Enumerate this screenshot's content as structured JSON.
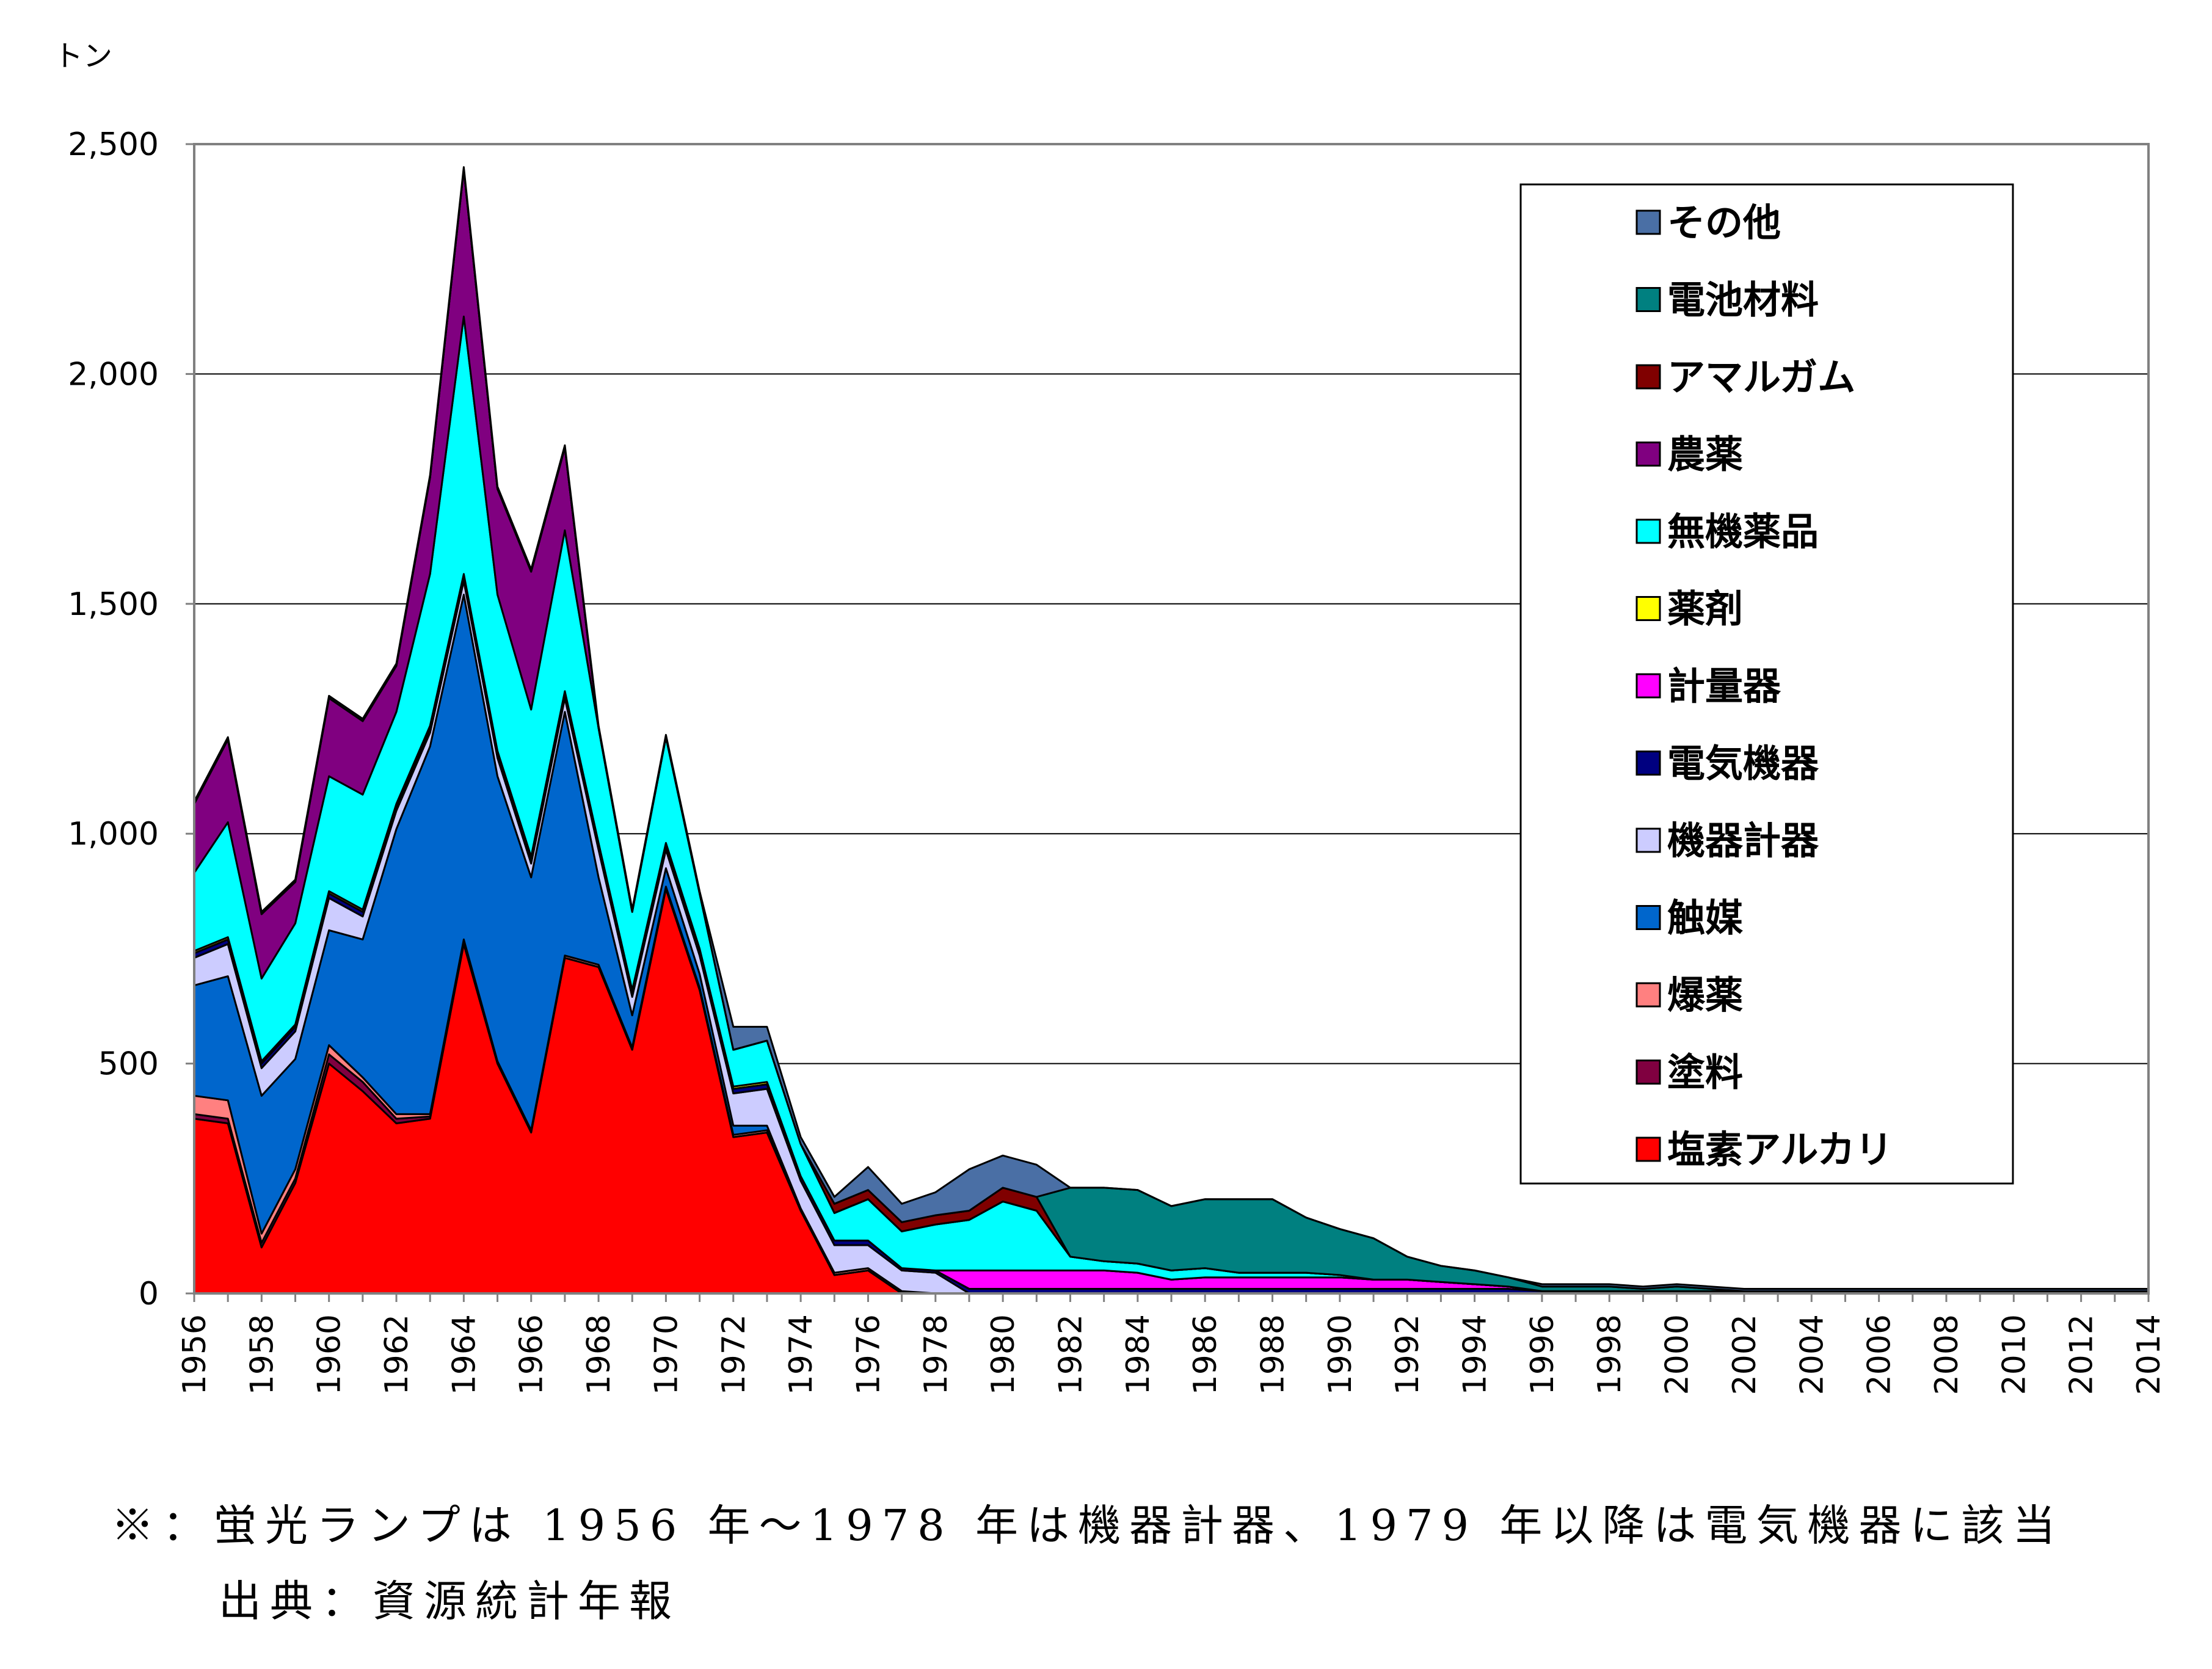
{
  "chart_data": {
    "type": "area",
    "stacked": true,
    "unit": "トン",
    "ylim": [
      0,
      2500
    ],
    "y_ticks": [
      "0",
      "500",
      "1,000",
      "1,500",
      "2,000",
      "2,500"
    ],
    "grid": true,
    "legend_position": "top-right",
    "x": [
      1956,
      1957,
      1958,
      1959,
      1960,
      1961,
      1962,
      1963,
      1964,
      1965,
      1966,
      1967,
      1968,
      1969,
      1970,
      1971,
      1972,
      1973,
      1974,
      1975,
      1976,
      1977,
      1978,
      1979,
      1980,
      1981,
      1982,
      1983,
      1984,
      1985,
      1986,
      1987,
      1988,
      1989,
      1990,
      1991,
      1992,
      1993,
      1994,
      1995,
      1996,
      1997,
      1998,
      1999,
      2000,
      2001,
      2002,
      2003,
      2004,
      2005,
      2006,
      2007,
      2008,
      2009,
      2010,
      2011,
      2012,
      2013,
      2014
    ],
    "x_tick_labels": [
      "1956",
      "1958",
      "1960",
      "1962",
      "1964",
      "1966",
      "1968",
      "1970",
      "1972",
      "1974",
      "1976",
      "1978",
      "1980",
      "1982",
      "1984",
      "1986",
      "1988",
      "1990",
      "1992",
      "1994",
      "1996",
      "1998",
      "2000",
      "2002",
      "2004",
      "2006",
      "2008",
      "2010",
      "2012",
      "2014"
    ],
    "series": [
      {
        "name": "塩素アルカリ",
        "color": "#ff0000",
        "values": [
          380,
          370,
          100,
          240,
          500,
          440,
          370,
          380,
          760,
          500,
          350,
          730,
          710,
          530,
          880,
          660,
          340,
          350,
          180,
          40,
          50,
          0,
          0,
          0,
          0,
          0,
          0,
          0,
          0,
          0,
          0,
          0,
          0,
          0,
          0,
          0,
          0,
          0,
          0,
          0,
          0,
          0,
          0,
          0,
          0,
          0,
          0,
          0,
          0,
          0,
          0,
          0,
          0,
          0,
          0,
          0,
          0,
          0,
          0
        ]
      },
      {
        "name": "塗料",
        "color": "#800040",
        "values": [
          10,
          10,
          10,
          10,
          20,
          20,
          10,
          5,
          5,
          0,
          0,
          0,
          0,
          0,
          0,
          0,
          0,
          0,
          0,
          0,
          0,
          0,
          0,
          0,
          0,
          0,
          0,
          0,
          0,
          0,
          0,
          0,
          0,
          0,
          0,
          0,
          0,
          0,
          0,
          0,
          0,
          0,
          0,
          0,
          0,
          0,
          0,
          0,
          0,
          0,
          0,
          0,
          0,
          0,
          0,
          0,
          0,
          0,
          0
        ]
      },
      {
        "name": "爆薬",
        "color": "#ff8080",
        "values": [
          40,
          40,
          20,
          20,
          20,
          10,
          10,
          5,
          5,
          5,
          5,
          5,
          5,
          5,
          5,
          5,
          5,
          5,
          5,
          5,
          5,
          5,
          0,
          0,
          0,
          0,
          0,
          0,
          0,
          0,
          0,
          0,
          0,
          0,
          0,
          0,
          0,
          0,
          0,
          0,
          0,
          0,
          0,
          0,
          0,
          0,
          0,
          0,
          0,
          0,
          0,
          0,
          0,
          0,
          0,
          0,
          0,
          0,
          0
        ]
      },
      {
        "name": "触媒",
        "color": "#0066cc",
        "values": [
          240,
          270,
          300,
          240,
          250,
          300,
          620,
          800,
          750,
          620,
          550,
          530,
          190,
          70,
          40,
          30,
          20,
          10,
          0,
          0,
          0,
          0,
          0,
          0,
          0,
          0,
          0,
          0,
          0,
          0,
          0,
          0,
          0,
          0,
          0,
          0,
          0,
          0,
          0,
          0,
          0,
          0,
          0,
          0,
          0,
          0,
          0,
          0,
          0,
          0,
          0,
          0,
          0,
          0,
          0,
          0,
          0,
          0,
          0
        ]
      },
      {
        "name": "機器計器",
        "color": "#ccccff",
        "values": [
          60,
          70,
          60,
          60,
          70,
          50,
          40,
          30,
          30,
          40,
          30,
          30,
          60,
          40,
          40,
          40,
          70,
          80,
          60,
          60,
          50,
          45,
          45,
          0,
          0,
          0,
          0,
          0,
          0,
          0,
          0,
          0,
          0,
          0,
          0,
          0,
          0,
          0,
          0,
          0,
          0,
          0,
          0,
          0,
          0,
          0,
          0,
          0,
          0,
          0,
          0,
          0,
          0,
          0,
          0,
          0,
          0,
          0,
          0
        ]
      },
      {
        "name": "電気機器",
        "color": "#000080",
        "values": [
          10,
          10,
          10,
          10,
          10,
          10,
          10,
          10,
          10,
          10,
          10,
          10,
          10,
          10,
          10,
          10,
          10,
          10,
          10,
          10,
          10,
          5,
          5,
          10,
          10,
          10,
          10,
          10,
          10,
          10,
          10,
          10,
          10,
          10,
          10,
          10,
          10,
          10,
          10,
          10,
          5,
          5,
          5,
          5,
          5,
          5,
          5,
          5,
          5,
          5,
          5,
          5,
          5,
          5,
          5,
          5,
          5,
          5,
          5
        ]
      },
      {
        "name": "計量器",
        "color": "#ff00ff",
        "values": [
          0,
          0,
          0,
          0,
          0,
          0,
          0,
          0,
          0,
          0,
          0,
          0,
          0,
          0,
          0,
          0,
          0,
          0,
          0,
          0,
          0,
          0,
          0,
          40,
          40,
          40,
          40,
          40,
          35,
          20,
          25,
          25,
          25,
          25,
          25,
          20,
          20,
          15,
          10,
          5,
          0,
          0,
          0,
          0,
          0,
          0,
          0,
          0,
          0,
          0,
          0,
          0,
          0,
          0,
          0,
          0,
          0,
          0,
          0
        ]
      },
      {
        "name": "薬剤",
        "color": "#ffff00",
        "values": [
          5,
          5,
          5,
          5,
          5,
          5,
          5,
          5,
          5,
          5,
          5,
          5,
          5,
          5,
          5,
          5,
          5,
          5,
          0,
          0,
          0,
          0,
          0,
          0,
          0,
          0,
          0,
          0,
          0,
          0,
          0,
          0,
          0,
          0,
          0,
          0,
          0,
          0,
          0,
          0,
          0,
          0,
          0,
          0,
          0,
          0,
          0,
          0,
          0,
          0,
          0,
          0,
          0,
          0,
          0,
          0,
          0,
          0,
          0
        ]
      },
      {
        "name": "無機薬品",
        "color": "#00ffff",
        "values": [
          170,
          250,
          180,
          220,
          250,
          250,
          200,
          330,
          560,
          340,
          320,
          350,
          250,
          170,
          230,
          120,
          80,
          90,
          70,
          60,
          90,
          80,
          100,
          110,
          150,
          130,
          30,
          20,
          20,
          20,
          20,
          10,
          10,
          10,
          5,
          0,
          0,
          0,
          0,
          0,
          0,
          0,
          0,
          0,
          0,
          0,
          0,
          0,
          0,
          0,
          0,
          0,
          0,
          0,
          0,
          0,
          0,
          0,
          0
        ]
      },
      {
        "name": "農薬",
        "color": "#800080",
        "values": [
          150,
          180,
          140,
          90,
          170,
          160,
          100,
          210,
          320,
          230,
          300,
          180,
          0,
          0,
          0,
          0,
          0,
          0,
          0,
          0,
          0,
          0,
          0,
          0,
          0,
          0,
          0,
          0,
          0,
          0,
          0,
          0,
          0,
          0,
          0,
          0,
          0,
          0,
          0,
          0,
          0,
          0,
          0,
          0,
          0,
          0,
          0,
          0,
          0,
          0,
          0,
          0,
          0,
          0,
          0,
          0,
          0,
          0,
          0
        ]
      },
      {
        "name": "アマルガム",
        "color": "#800000",
        "values": [
          0,
          0,
          0,
          0,
          0,
          0,
          0,
          0,
          0,
          0,
          0,
          0,
          0,
          0,
          0,
          0,
          0,
          0,
          0,
          20,
          20,
          20,
          20,
          20,
          30,
          30,
          0,
          0,
          0,
          0,
          0,
          0,
          0,
          0,
          0,
          0,
          0,
          0,
          0,
          0,
          0,
          0,
          0,
          0,
          0,
          0,
          0,
          0,
          0,
          0,
          0,
          0,
          0,
          0,
          0,
          0,
          0,
          0,
          0
        ]
      },
      {
        "name": "電池材料",
        "color": "#008080",
        "values": [
          0,
          0,
          0,
          0,
          0,
          0,
          0,
          0,
          0,
          0,
          0,
          0,
          0,
          0,
          0,
          0,
          0,
          0,
          0,
          0,
          0,
          0,
          0,
          0,
          0,
          0,
          150,
          160,
          160,
          140,
          150,
          160,
          160,
          120,
          100,
          90,
          50,
          35,
          30,
          20,
          10,
          10,
          10,
          5,
          10,
          5,
          0,
          0,
          0,
          0,
          0,
          0,
          0,
          0,
          0,
          0,
          0,
          0,
          0
        ]
      },
      {
        "name": "その他",
        "color": "#4a6fa5",
        "values": [
          5,
          5,
          5,
          5,
          5,
          5,
          5,
          5,
          5,
          5,
          5,
          5,
          5,
          5,
          5,
          5,
          50,
          30,
          15,
          15,
          50,
          40,
          50,
          90,
          70,
          70,
          0,
          0,
          0,
          0,
          0,
          0,
          0,
          0,
          0,
          0,
          0,
          0,
          0,
          0,
          5,
          5,
          5,
          5,
          5,
          5,
          5,
          5,
          5,
          5,
          5,
          5,
          5,
          5,
          5,
          5,
          5,
          5,
          5
        ]
      }
    ]
  },
  "notes": {
    "line1": "※：蛍光ランプは 1956 年～1978 年は機器計器、1979 年以降は電気機器に該当",
    "line2": "出典：資源統計年報"
  }
}
